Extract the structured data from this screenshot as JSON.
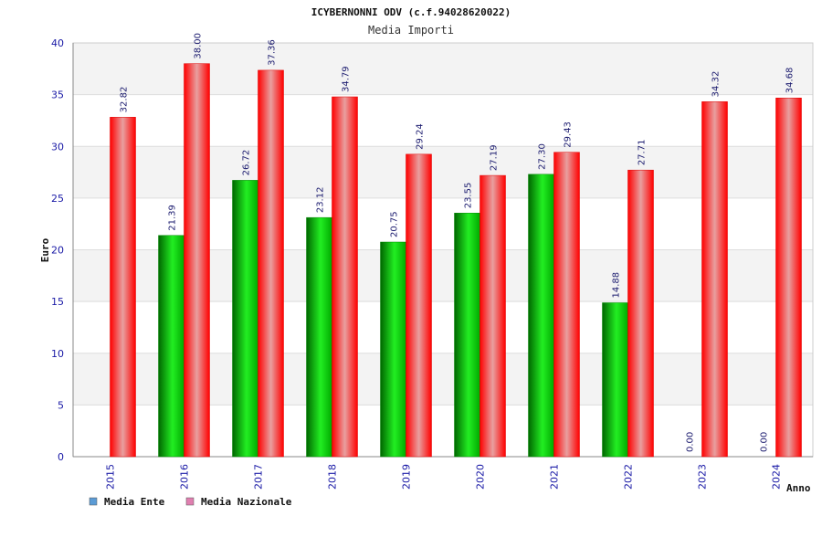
{
  "chart_data": {
    "type": "bar",
    "title": "ICYBERNONNI ODV (c.f.94028620022)",
    "subtitle": "Media Importi",
    "xlabel": "Anno",
    "ylabel": "Euro",
    "ylim": [
      0,
      40
    ],
    "yticks": [
      0,
      5,
      10,
      15,
      20,
      25,
      30,
      35,
      40
    ],
    "grid": true,
    "legend_position": "bottom-left",
    "categories": [
      "2015",
      "2016",
      "2017",
      "2018",
      "2019",
      "2020",
      "2021",
      "2022",
      "2023",
      "2024"
    ],
    "series": [
      {
        "name": "Media Ente",
        "legend_color": "#5b9bd5",
        "bar_color": "#00aa00",
        "values": [
          null,
          21.39,
          26.72,
          23.12,
          20.75,
          23.55,
          27.3,
          14.88,
          0.0,
          0.0
        ],
        "labels": [
          "",
          "21.39",
          "26.72",
          "23.12",
          "20.75",
          "23.55",
          "27.30",
          "14.88",
          "0.00",
          "0.00"
        ]
      },
      {
        "name": "Media Nazionale",
        "legend_color": "#e07fb0",
        "bar_color": "#ee1111",
        "values": [
          32.82,
          38.0,
          37.36,
          34.79,
          29.24,
          27.19,
          29.43,
          27.71,
          34.32,
          34.68
        ],
        "labels": [
          "32.82",
          "38.00",
          "37.36",
          "34.79",
          "29.24",
          "27.19",
          "29.43",
          "27.71",
          "34.32",
          "34.68"
        ]
      }
    ]
  }
}
